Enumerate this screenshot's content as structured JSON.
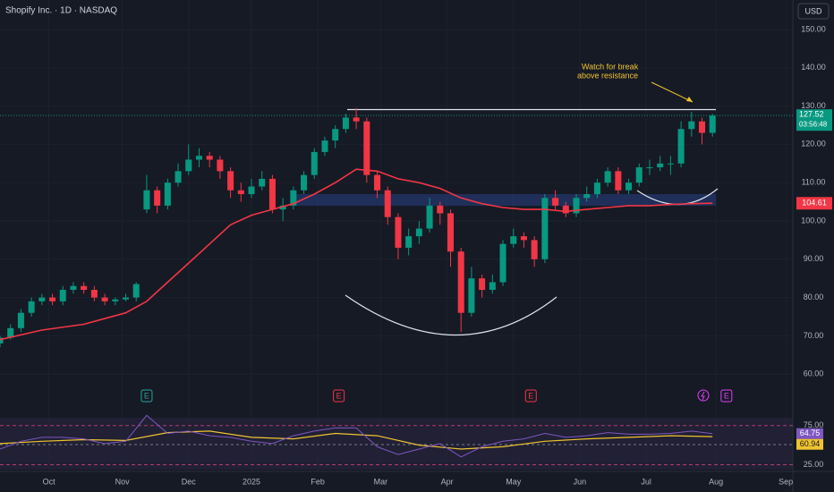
{
  "chart_data": {
    "type": "candlestick",
    "title": "Shopify Inc. · 1D · NASDAQ",
    "currency": "USD",
    "countdown": "03:56:48",
    "up_color": "#089981",
    "down_color": "#f23645",
    "ylim": [
      51.4,
      157.7
    ],
    "yticks": [
      {
        "value": 60,
        "label": "60.00"
      },
      {
        "value": 70,
        "label": "70.00"
      },
      {
        "value": 80,
        "label": "80.00"
      },
      {
        "value": 90,
        "label": "90.00"
      },
      {
        "value": 100,
        "label": "100.00"
      },
      {
        "value": 110,
        "label": "110.00"
      },
      {
        "value": 120,
        "label": "120.00"
      },
      {
        "value": 130,
        "label": "130.00"
      },
      {
        "value": 140,
        "label": "140.00"
      },
      {
        "value": 150,
        "label": "150.00"
      }
    ],
    "xlim": [
      0,
      227
    ],
    "xticks": [
      {
        "value": 14,
        "label": "Oct"
      },
      {
        "value": 35,
        "label": "Nov"
      },
      {
        "value": 54,
        "label": "Dec"
      },
      {
        "value": 72,
        "label": "2025"
      },
      {
        "value": 91,
        "label": "Feb"
      },
      {
        "value": 109,
        "label": "Mar"
      },
      {
        "value": 128,
        "label": "Apr"
      },
      {
        "value": 147,
        "label": "May"
      },
      {
        "value": 166,
        "label": "Jun"
      },
      {
        "value": 185,
        "label": "Jul"
      },
      {
        "value": 205,
        "label": "Aug"
      },
      {
        "value": 225,
        "label": "Sep"
      }
    ],
    "grid": true,
    "x": [
      0,
      3,
      6,
      9,
      12,
      15,
      18,
      21,
      24,
      27,
      30,
      33,
      36,
      39,
      42,
      45,
      48,
      51,
      54,
      57,
      60,
      63,
      66,
      69,
      72,
      75,
      78,
      81,
      84,
      87,
      90,
      93,
      96,
      99,
      102,
      105,
      108,
      111,
      114,
      117,
      120,
      123,
      126,
      129,
      132,
      135,
      138,
      141,
      144,
      147,
      150,
      153,
      156,
      159,
      162,
      165,
      168,
      171,
      174,
      177,
      180,
      183,
      186,
      189,
      192,
      195,
      198,
      201,
      204
    ],
    "ohlc": [
      [
        68,
        70,
        67,
        69.5
      ],
      [
        69.5,
        73,
        69,
        72
      ],
      [
        72,
        77,
        71,
        76
      ],
      [
        76,
        80,
        75,
        79
      ],
      [
        79,
        81,
        78,
        80
      ],
      [
        80,
        81,
        78,
        79
      ],
      [
        79,
        83,
        78,
        82
      ],
      [
        82,
        84,
        81,
        83
      ],
      [
        83,
        84,
        81,
        82
      ],
      [
        82,
        83,
        79,
        80
      ],
      [
        80,
        81,
        78,
        79
      ],
      [
        79,
        80,
        78,
        79.5
      ],
      [
        79.5,
        81,
        79,
        80
      ],
      [
        80,
        84,
        79,
        83.5
      ],
      [
        103,
        112,
        102,
        108
      ],
      [
        108,
        109,
        102,
        104
      ],
      [
        104,
        111,
        103,
        110
      ],
      [
        110,
        115,
        109,
        113
      ],
      [
        113,
        120,
        112,
        116
      ],
      [
        116,
        119,
        114,
        117
      ],
      [
        117,
        118,
        114,
        116
      ],
      [
        116,
        117,
        111,
        113
      ],
      [
        113,
        114,
        106,
        108
      ],
      [
        108,
        110,
        105,
        107
      ],
      [
        107,
        111,
        106,
        109
      ],
      [
        109,
        113,
        108,
        111
      ],
      [
        111,
        112,
        102,
        103
      ],
      [
        103,
        106,
        100,
        104
      ],
      [
        104,
        109,
        103,
        108
      ],
      [
        108,
        113,
        107,
        112
      ],
      [
        112,
        119,
        111,
        118
      ],
      [
        118,
        122,
        117,
        121
      ],
      [
        121,
        125,
        119,
        124
      ],
      [
        124,
        128,
        123,
        127
      ],
      [
        127,
        129.5,
        124,
        126
      ],
      [
        126,
        127,
        110,
        112
      ],
      [
        112,
        113,
        106,
        108
      ],
      [
        108,
        109,
        99,
        101
      ],
      [
        101,
        102,
        90,
        93
      ],
      [
        93,
        98,
        91,
        96
      ],
      [
        96,
        100,
        94,
        98
      ],
      [
        98,
        106,
        97,
        104
      ],
      [
        104,
        105,
        99,
        102
      ],
      [
        102,
        103,
        88,
        92
      ],
      [
        92,
        93,
        71,
        76
      ],
      [
        76,
        88,
        75,
        85
      ],
      [
        85,
        86,
        80,
        82
      ],
      [
        82,
        86,
        81,
        84
      ],
      [
        84,
        95,
        83,
        94
      ],
      [
        94,
        98,
        93,
        96
      ],
      [
        96,
        97,
        93,
        95
      ],
      [
        95,
        96,
        88,
        90
      ],
      [
        90,
        107,
        89,
        106
      ],
      [
        106,
        108,
        103,
        104
      ],
      [
        104,
        105,
        101,
        102
      ],
      [
        102,
        107,
        101,
        106
      ],
      [
        106,
        109,
        105,
        107
      ],
      [
        107,
        111,
        106,
        110
      ],
      [
        110,
        114,
        109,
        113
      ],
      [
        113,
        114,
        107,
        108
      ],
      [
        108,
        111,
        107,
        110
      ],
      [
        110,
        115,
        109,
        114
      ],
      [
        114,
        116,
        112,
        114
      ],
      [
        114,
        117,
        113,
        115
      ],
      [
        115,
        117,
        112,
        115
      ],
      [
        115,
        126,
        114,
        124
      ],
      [
        124,
        128.5,
        122,
        126
      ],
      [
        126,
        127,
        120,
        123
      ],
      [
        123,
        128,
        122,
        127.52
      ]
    ],
    "ma": {
      "color": "#f23645",
      "x": [
        0,
        12,
        24,
        36,
        42,
        48,
        54,
        60,
        66,
        72,
        78,
        84,
        90,
        96,
        102,
        108,
        114,
        120,
        126,
        132,
        138,
        144,
        150,
        156,
        162,
        168,
        174,
        180,
        186,
        192,
        198,
        204
      ],
      "values": [
        69,
        71.5,
        73,
        76,
        79,
        84,
        89,
        94,
        99,
        101.5,
        103,
        104.5,
        107,
        110,
        113.5,
        113,
        111,
        110,
        108.5,
        106,
        104.5,
        103.5,
        103,
        103,
        102.5,
        103,
        103.5,
        104,
        104,
        104.3,
        104.5,
        104.61
      ]
    },
    "annotation": [
      "Watch for break",
      "above resistance"
    ],
    "events": [
      {
        "x": 42,
        "label": "E",
        "color": "#26a69a"
      },
      {
        "x": 97,
        "label": "E",
        "color": "#f23645"
      },
      {
        "x": 152,
        "label": "E",
        "color": "#f23645"
      },
      {
        "x": 208,
        "label": "E",
        "color": "#e040fb"
      }
    ],
    "rsi": {
      "ylim": [
        13,
        93
      ],
      "yticks": [
        {
          "value": 75,
          "label": "75.00"
        },
        {
          "value": 25,
          "label": "25.00"
        }
      ],
      "color": "#7e57c2",
      "ma_color": "#f0c330",
      "x": [
        0,
        6,
        12,
        18,
        24,
        30,
        36,
        42,
        48,
        54,
        60,
        66,
        72,
        78,
        84,
        90,
        96,
        102,
        108,
        114,
        120,
        126,
        132,
        138,
        144,
        150,
        156,
        162,
        168,
        174,
        180,
        186,
        192,
        198,
        204
      ],
      "values": [
        45,
        55,
        60,
        60,
        58,
        52,
        55,
        88,
        65,
        68,
        62,
        60,
        55,
        52,
        62,
        68,
        72,
        72,
        48,
        38,
        45,
        52,
        35,
        48,
        55,
        58,
        65,
        60,
        62,
        66,
        64,
        64,
        65,
        68,
        64.75
      ],
      "ma_x": [
        0,
        12,
        24,
        36,
        48,
        60,
        72,
        84,
        96,
        108,
        120,
        132,
        144,
        156,
        168,
        180,
        192,
        204
      ],
      "ma_values": [
        52,
        55,
        57,
        56,
        66,
        68,
        60,
        58,
        65,
        62,
        50,
        45,
        48,
        55,
        58,
        60,
        62,
        60.94
      ]
    }
  }
}
